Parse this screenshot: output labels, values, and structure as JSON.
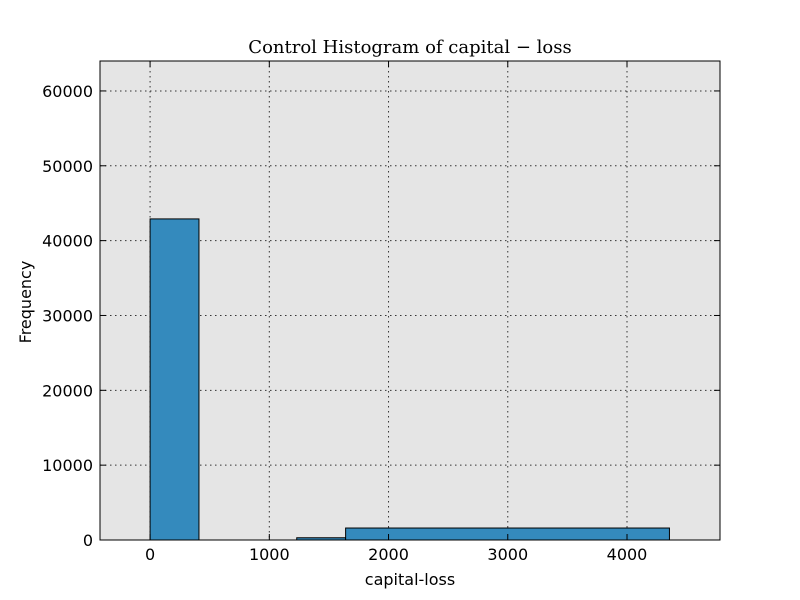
{
  "colors": {
    "bar": "#348abd",
    "plot_background": "#e5e5e5"
  },
  "chart_data": {
    "type": "bar",
    "title": "Control Histogram of capital − loss",
    "xlabel": "capital-loss",
    "ylabel": "Frequency",
    "xlim": [
      -420,
      4780
    ],
    "ylim": [
      0,
      64000
    ],
    "xticks": [
      0,
      1000,
      2000,
      3000,
      4000
    ],
    "yticks": [
      0,
      10000,
      20000,
      30000,
      40000,
      50000,
      60000
    ],
    "xtick_labels": [
      "0",
      "1000",
      "2000",
      "3000",
      "4000"
    ],
    "ytick_labels": [
      "0",
      "10000",
      "20000",
      "30000",
      "40000",
      "50000",
      "60000"
    ],
    "grid": true,
    "bins": [
      {
        "x0": 0,
        "x1": 410,
        "value": 42900
      },
      {
        "x0": 410,
        "x1": 1230,
        "value": 0
      },
      {
        "x0": 1230,
        "x1": 1640,
        "value": 300
      },
      {
        "x0": 1640,
        "x1": 4356,
        "value": 1600
      }
    ]
  }
}
